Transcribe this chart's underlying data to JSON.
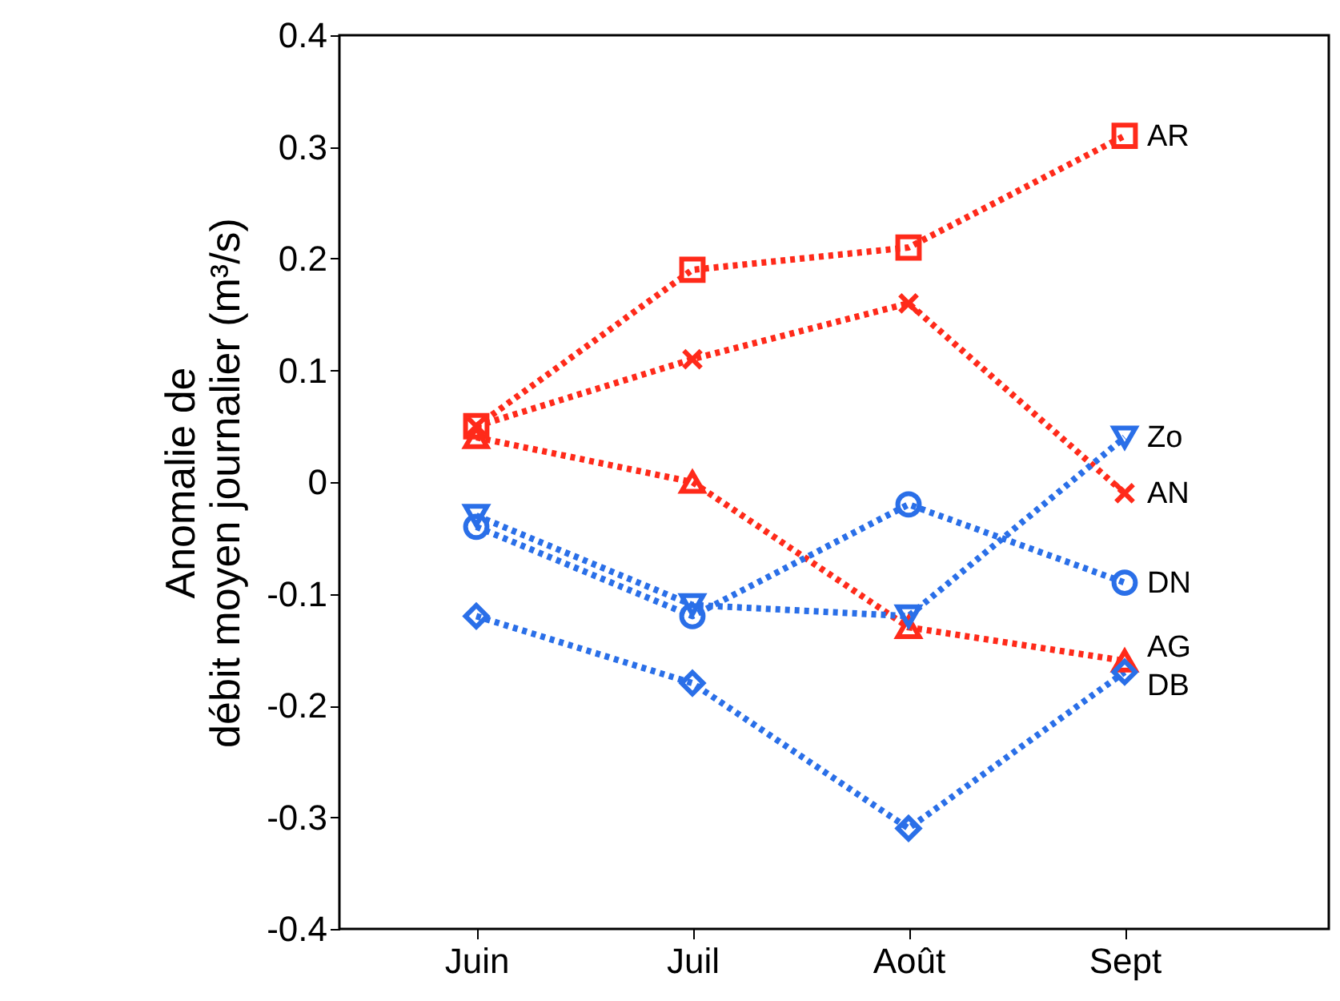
{
  "chart_data": {
    "type": "line",
    "ylabel": "Anomalie de débit moyen journalier (m³/s)",
    "categories": [
      "Juin",
      "Juil",
      "Août",
      "Sept"
    ],
    "series": [
      {
        "name": "AR",
        "color": "#ff2a1a",
        "marker": "square",
        "values": [
          0.05,
          0.19,
          0.21,
          0.31
        ]
      },
      {
        "name": "AN",
        "color": "#ff2a1a",
        "marker": "cross",
        "values": [
          0.05,
          0.11,
          0.16,
          -0.01
        ]
      },
      {
        "name": "AG",
        "color": "#ff2a1a",
        "marker": "triangle",
        "values": [
          0.04,
          0.0,
          -0.13,
          -0.16
        ]
      },
      {
        "name": "Zo",
        "color": "#2a6fe8",
        "marker": "triangle-down",
        "values": [
          -0.03,
          -0.11,
          -0.12,
          0.04
        ]
      },
      {
        "name": "DN",
        "color": "#2a6fe8",
        "marker": "circle",
        "values": [
          -0.04,
          -0.12,
          -0.02,
          -0.09
        ]
      },
      {
        "name": "DB",
        "color": "#2a6fe8",
        "marker": "diamond",
        "values": [
          -0.12,
          -0.18,
          -0.31,
          -0.17
        ]
      }
    ],
    "ylim": [
      -0.4,
      0.4
    ],
    "yticks": [
      -0.4,
      -0.3,
      -0.2,
      -0.1,
      0,
      0.1,
      0.2,
      0.3,
      0.4
    ],
    "grid": false,
    "legend": false,
    "line_style": "dotted"
  }
}
